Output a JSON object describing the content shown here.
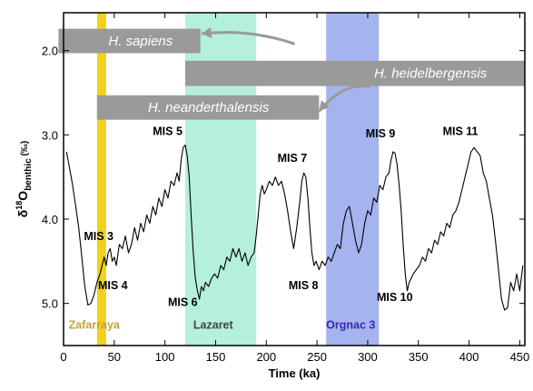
{
  "chart_data": {
    "type": "line",
    "xlabel": "Time (ka)",
    "ylabel": {
      "base": "δ",
      "sup": "18",
      "main": "O",
      "sub": "benthic",
      "unit": " (‰)"
    },
    "xlim": [
      0,
      455
    ],
    "ylim": [
      5.5,
      1.55
    ],
    "y_inverted": true,
    "grid": false,
    "x_ticks": [
      0,
      50,
      100,
      150,
      200,
      250,
      300,
      350,
      400,
      450
    ],
    "y_ticks": [
      2.0,
      3.0,
      4.0,
      5.0
    ],
    "y_tick_labels": [
      "2.0",
      "3.0",
      "4.0",
      "5.0"
    ],
    "series": [
      {
        "color": "#000000",
        "points": [
          [
            3,
            3.2
          ],
          [
            6,
            3.4
          ],
          [
            9,
            3.6
          ],
          [
            12,
            3.85
          ],
          [
            15,
            4.1
          ],
          [
            18,
            4.45
          ],
          [
            21,
            4.8
          ],
          [
            24,
            5.02
          ],
          [
            27,
            5.0
          ],
          [
            30,
            4.9
          ],
          [
            33,
            4.75
          ],
          [
            36,
            4.65
          ],
          [
            38,
            4.55
          ],
          [
            40,
            4.45
          ],
          [
            42,
            4.55
          ],
          [
            44,
            4.4
          ],
          [
            46,
            4.35
          ],
          [
            48,
            4.5
          ],
          [
            50,
            4.45
          ],
          [
            52,
            4.55
          ],
          [
            55,
            4.3
          ],
          [
            58,
            4.35
          ],
          [
            61,
            4.2
          ],
          [
            64,
            4.4
          ],
          [
            67,
            4.3
          ],
          [
            70,
            4.1
          ],
          [
            73,
            4.25
          ],
          [
            76,
            4.05
          ],
          [
            79,
            4.15
          ],
          [
            82,
            3.95
          ],
          [
            85,
            4.05
          ],
          [
            88,
            3.85
          ],
          [
            91,
            3.95
          ],
          [
            94,
            3.75
          ],
          [
            97,
            3.85
          ],
          [
            100,
            3.65
          ],
          [
            103,
            3.75
          ],
          [
            106,
            3.55
          ],
          [
            109,
            3.6
          ],
          [
            112,
            3.45
          ],
          [
            114,
            3.55
          ],
          [
            116,
            3.3
          ],
          [
            118,
            3.15
          ],
          [
            120,
            3.12
          ],
          [
            122,
            3.25
          ],
          [
            124,
            3.5
          ],
          [
            126,
            4.0
          ],
          [
            128,
            4.4
          ],
          [
            130,
            4.7
          ],
          [
            132,
            4.85
          ],
          [
            134,
            4.95
          ],
          [
            136,
            4.8
          ],
          [
            138,
            4.85
          ],
          [
            140,
            4.75
          ],
          [
            143,
            4.8
          ],
          [
            146,
            4.7
          ],
          [
            149,
            4.65
          ],
          [
            152,
            4.7
          ],
          [
            155,
            4.55
          ],
          [
            158,
            4.6
          ],
          [
            161,
            4.45
          ],
          [
            164,
            4.5
          ],
          [
            167,
            4.35
          ],
          [
            170,
            4.45
          ],
          [
            173,
            4.35
          ],
          [
            176,
            4.5
          ],
          [
            179,
            4.4
          ],
          [
            182,
            4.55
          ],
          [
            185,
            4.45
          ],
          [
            188,
            4.4
          ],
          [
            190,
            4.2
          ],
          [
            192,
            3.95
          ],
          [
            194,
            3.7
          ],
          [
            196,
            3.6
          ],
          [
            198,
            3.7
          ],
          [
            200,
            3.65
          ],
          [
            203,
            3.55
          ],
          [
            206,
            3.6
          ],
          [
            209,
            3.5
          ],
          [
            212,
            3.6
          ],
          [
            215,
            3.55
          ],
          [
            218,
            3.7
          ],
          [
            221,
            3.9
          ],
          [
            224,
            4.15
          ],
          [
            227,
            4.35
          ],
          [
            230,
            4.1
          ],
          [
            233,
            3.8
          ],
          [
            235,
            3.55
          ],
          [
            237,
            3.45
          ],
          [
            239,
            3.5
          ],
          [
            241,
            3.75
          ],
          [
            243,
            4.1
          ],
          [
            245,
            4.4
          ],
          [
            247,
            4.55
          ],
          [
            249,
            4.5
          ],
          [
            252,
            4.6
          ],
          [
            255,
            4.5
          ],
          [
            258,
            4.55
          ],
          [
            261,
            4.45
          ],
          [
            264,
            4.5
          ],
          [
            267,
            4.4
          ],
          [
            270,
            4.3
          ],
          [
            273,
            4.35
          ],
          [
            276,
            4.05
          ],
          [
            279,
            3.9
          ],
          [
            282,
            3.85
          ],
          [
            285,
            4.05
          ],
          [
            288,
            4.25
          ],
          [
            291,
            4.4
          ],
          [
            294,
            4.3
          ],
          [
            297,
            4.05
          ],
          [
            300,
            3.9
          ],
          [
            303,
            3.95
          ],
          [
            306,
            3.75
          ],
          [
            309,
            3.8
          ],
          [
            312,
            3.6
          ],
          [
            315,
            3.65
          ],
          [
            318,
            3.5
          ],
          [
            321,
            3.45
          ],
          [
            323,
            3.3
          ],
          [
            325,
            3.2
          ],
          [
            327,
            3.22
          ],
          [
            329,
            3.35
          ],
          [
            331,
            3.6
          ],
          [
            333,
            3.9
          ],
          [
            335,
            4.3
          ],
          [
            337,
            4.65
          ],
          [
            339,
            4.85
          ],
          [
            341,
            4.75
          ],
          [
            343,
            4.7
          ],
          [
            345,
            4.65
          ],
          [
            348,
            4.6
          ],
          [
            351,
            4.55
          ],
          [
            354,
            4.45
          ],
          [
            357,
            4.5
          ],
          [
            360,
            4.35
          ],
          [
            363,
            4.4
          ],
          [
            366,
            4.25
          ],
          [
            369,
            4.3
          ],
          [
            372,
            4.15
          ],
          [
            375,
            4.2
          ],
          [
            378,
            4.05
          ],
          [
            381,
            4.1
          ],
          [
            384,
            3.95
          ],
          [
            387,
            3.9
          ],
          [
            390,
            3.8
          ],
          [
            393,
            3.65
          ],
          [
            396,
            3.5
          ],
          [
            399,
            3.35
          ],
          [
            402,
            3.2
          ],
          [
            405,
            3.15
          ],
          [
            408,
            3.2
          ],
          [
            411,
            3.25
          ],
          [
            414,
            3.45
          ],
          [
            417,
            3.55
          ],
          [
            420,
            3.75
          ],
          [
            423,
            3.95
          ],
          [
            426,
            4.25
          ],
          [
            429,
            4.6
          ],
          [
            432,
            4.95
          ],
          [
            435,
            5.08
          ],
          [
            438,
            5.05
          ],
          [
            441,
            4.75
          ],
          [
            444,
            4.85
          ],
          [
            447,
            4.65
          ],
          [
            450,
            4.85
          ],
          [
            453,
            4.55
          ]
        ]
      }
    ],
    "shaded_bands": [
      {
        "label": "Zafarraya",
        "x0": 33,
        "x1": 42,
        "color": "#f0d21e",
        "label_color": "#c8a03c",
        "label_x": 5
      },
      {
        "label": "Lazaret",
        "x0": 120,
        "x1": 190,
        "color": "#b4f0dc",
        "label_color": "#444444",
        "label_x": 128
      },
      {
        "label": "Orgnac 3",
        "x0": 259,
        "x1": 311,
        "color": "#a5b4ee",
        "label_color": "#3a28b4",
        "label_x": 259
      }
    ],
    "band_label_y": 5.3,
    "species_bars": [
      {
        "label": "H. sapiens",
        "x0": -5,
        "x1": 135,
        "y_top": 1.74,
        "y_bot": 2.03,
        "label_x": 76
      },
      {
        "label": "H. heidelbergensis",
        "x0": 120,
        "x1": 455,
        "y_top": 2.12,
        "y_bot": 2.42,
        "label_x": 362
      },
      {
        "label": "H. neanderthalensis",
        "x0": 33,
        "x1": 252,
        "y_top": 2.53,
        "y_bot": 2.82,
        "label_x": 143
      }
    ],
    "species_bar_color": "#9a9a9a",
    "species_arrows": [
      {
        "from": [
          228,
          1.92
        ],
        "to": [
          136,
          1.8
        ]
      },
      {
        "from": [
          302,
          2.43
        ],
        "to": [
          252,
          2.72
        ]
      }
    ],
    "annotations": [
      {
        "text": "MIS 3",
        "x": 20,
        "y": 4.25
      },
      {
        "text": "MIS 4",
        "x": 34,
        "y": 4.83
      },
      {
        "text": "MIS 5",
        "x": 88,
        "y": 3.0
      },
      {
        "text": "MIS 6",
        "x": 103,
        "y": 5.03
      },
      {
        "text": "MIS 7",
        "x": 211,
        "y": 3.32
      },
      {
        "text": "MIS 8",
        "x": 222,
        "y": 4.83
      },
      {
        "text": "MIS 9",
        "x": 298,
        "y": 3.03
      },
      {
        "text": "MIS 10",
        "x": 309,
        "y": 4.97
      },
      {
        "text": "MIS 11",
        "x": 374,
        "y": 3.0
      }
    ]
  }
}
